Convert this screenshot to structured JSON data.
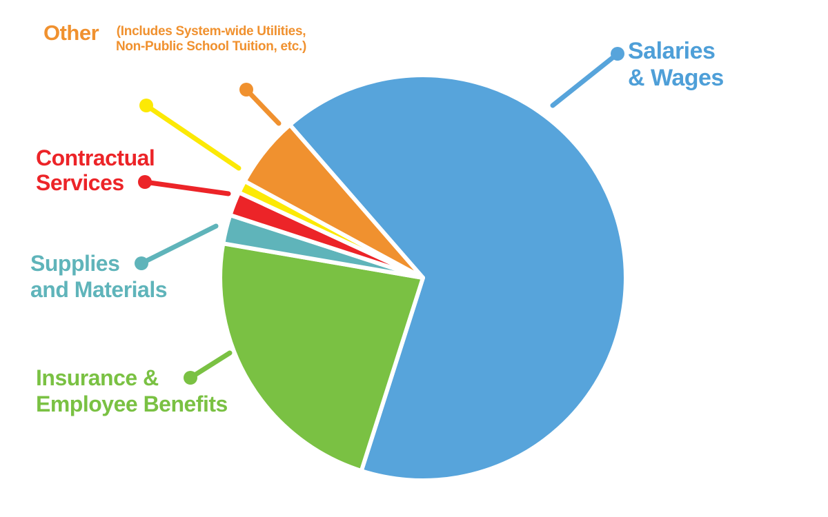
{
  "chart_data": {
    "type": "pie",
    "title": "",
    "legend_position": "callout-labels",
    "start_angle_deg": 131,
    "direction": "clockwise",
    "note": "No numeric values are printed in the image; percentages are estimated from slice angles.",
    "slices": [
      {
        "id": "salaries-wages",
        "label": "Salaries & Wages",
        "value_pct": 66.3,
        "color": "#57A4DB"
      },
      {
        "id": "insurance-benefits",
        "label": "Insurance & Employee Benefits",
        "value_pct": 22.8,
        "color": "#7AC143"
      },
      {
        "id": "supplies-materials",
        "label": "Supplies and Materials",
        "value_pct": 2.3,
        "color": "#5FB4BA"
      },
      {
        "id": "contractual-services",
        "label": "Contractual Services",
        "value_pct": 1.9,
        "color": "#EC2428"
      },
      {
        "id": "unlabeled-yellow",
        "label": "",
        "value_pct": 1.0,
        "color": "#FCE905"
      },
      {
        "id": "other",
        "label": "Other (Includes System-wide Utilities, Non-Public School Tuition, etc.)",
        "value_pct": 5.7,
        "color": "#F0912F"
      }
    ]
  },
  "labels": {
    "other": {
      "title": "Other",
      "sub1": "(Includes System-wide Utilities,",
      "sub2": "Non-Public School Tuition, etc.)",
      "color": "#F0912F"
    },
    "salaries": {
      "line1": "Salaries",
      "line2": "& Wages",
      "color": "#4E9FD8"
    },
    "contractual": {
      "line1": "Contractual",
      "line2": "Services",
      "color": "#EC2428"
    },
    "supplies": {
      "line1": "Supplies",
      "line2": "and Materials",
      "color": "#5FB4BA"
    },
    "insurance": {
      "line1": "Insurance &",
      "line2": "Employee Benefits",
      "color": "#7AC143"
    }
  },
  "background_color": "#FFFFFF"
}
